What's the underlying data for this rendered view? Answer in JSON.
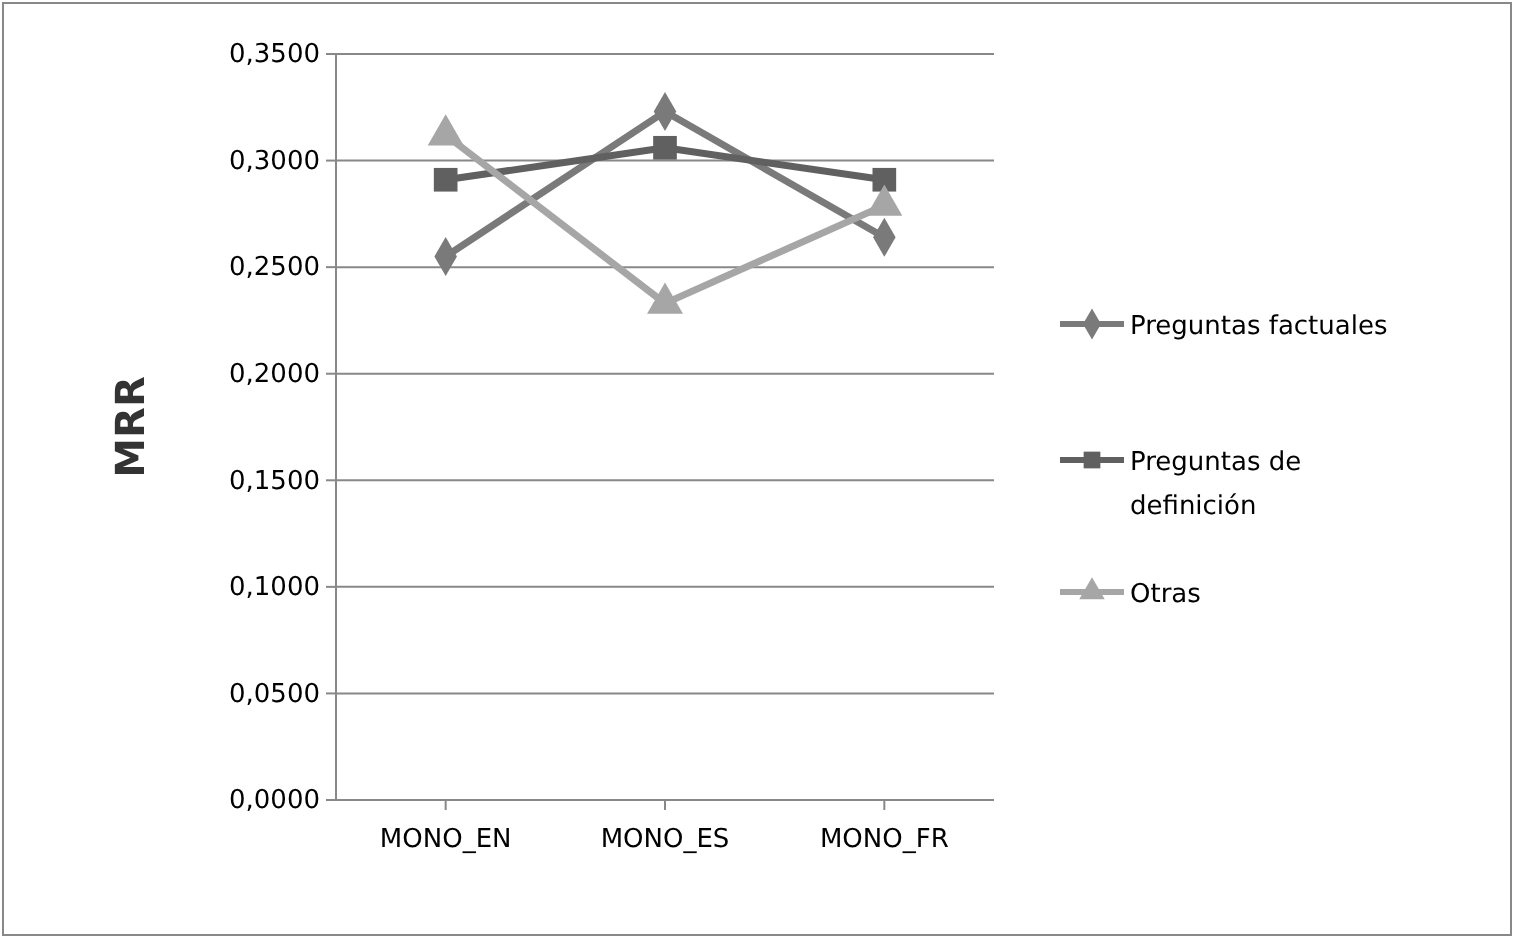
{
  "chart_data": {
    "type": "line",
    "ylabel": "MRR",
    "categories": [
      "MONO_EN",
      "MONO_ES",
      "MONO_FR"
    ],
    "series": [
      {
        "name": "Preguntas factuales",
        "color": "#7a7a7a",
        "marker": "diamond",
        "values": [
          0.255,
          0.323,
          0.264
        ]
      },
      {
        "name": "Preguntas de definición",
        "color": "#606060",
        "marker": "square",
        "values": [
          0.291,
          0.306,
          0.291
        ]
      },
      {
        "name": "Otras",
        "color": "#a6a6a6",
        "marker": "triangle",
        "values": [
          0.312,
          0.233,
          0.279
        ]
      }
    ],
    "ylim": [
      0,
      0.35
    ],
    "yticks": [
      {
        "value": 0,
        "label": "0,0000"
      },
      {
        "value": 0.05,
        "label": "0,0500"
      },
      {
        "value": 0.1,
        "label": "0,1000"
      },
      {
        "value": 0.15,
        "label": "0,1500"
      },
      {
        "value": 0.2,
        "label": "0,2000"
      },
      {
        "value": 0.25,
        "label": "0,2500"
      },
      {
        "value": 0.3,
        "label": "0,3000"
      },
      {
        "value": 0.35,
        "label": "0,3500"
      }
    ],
    "grid": "y",
    "legend": "right"
  }
}
